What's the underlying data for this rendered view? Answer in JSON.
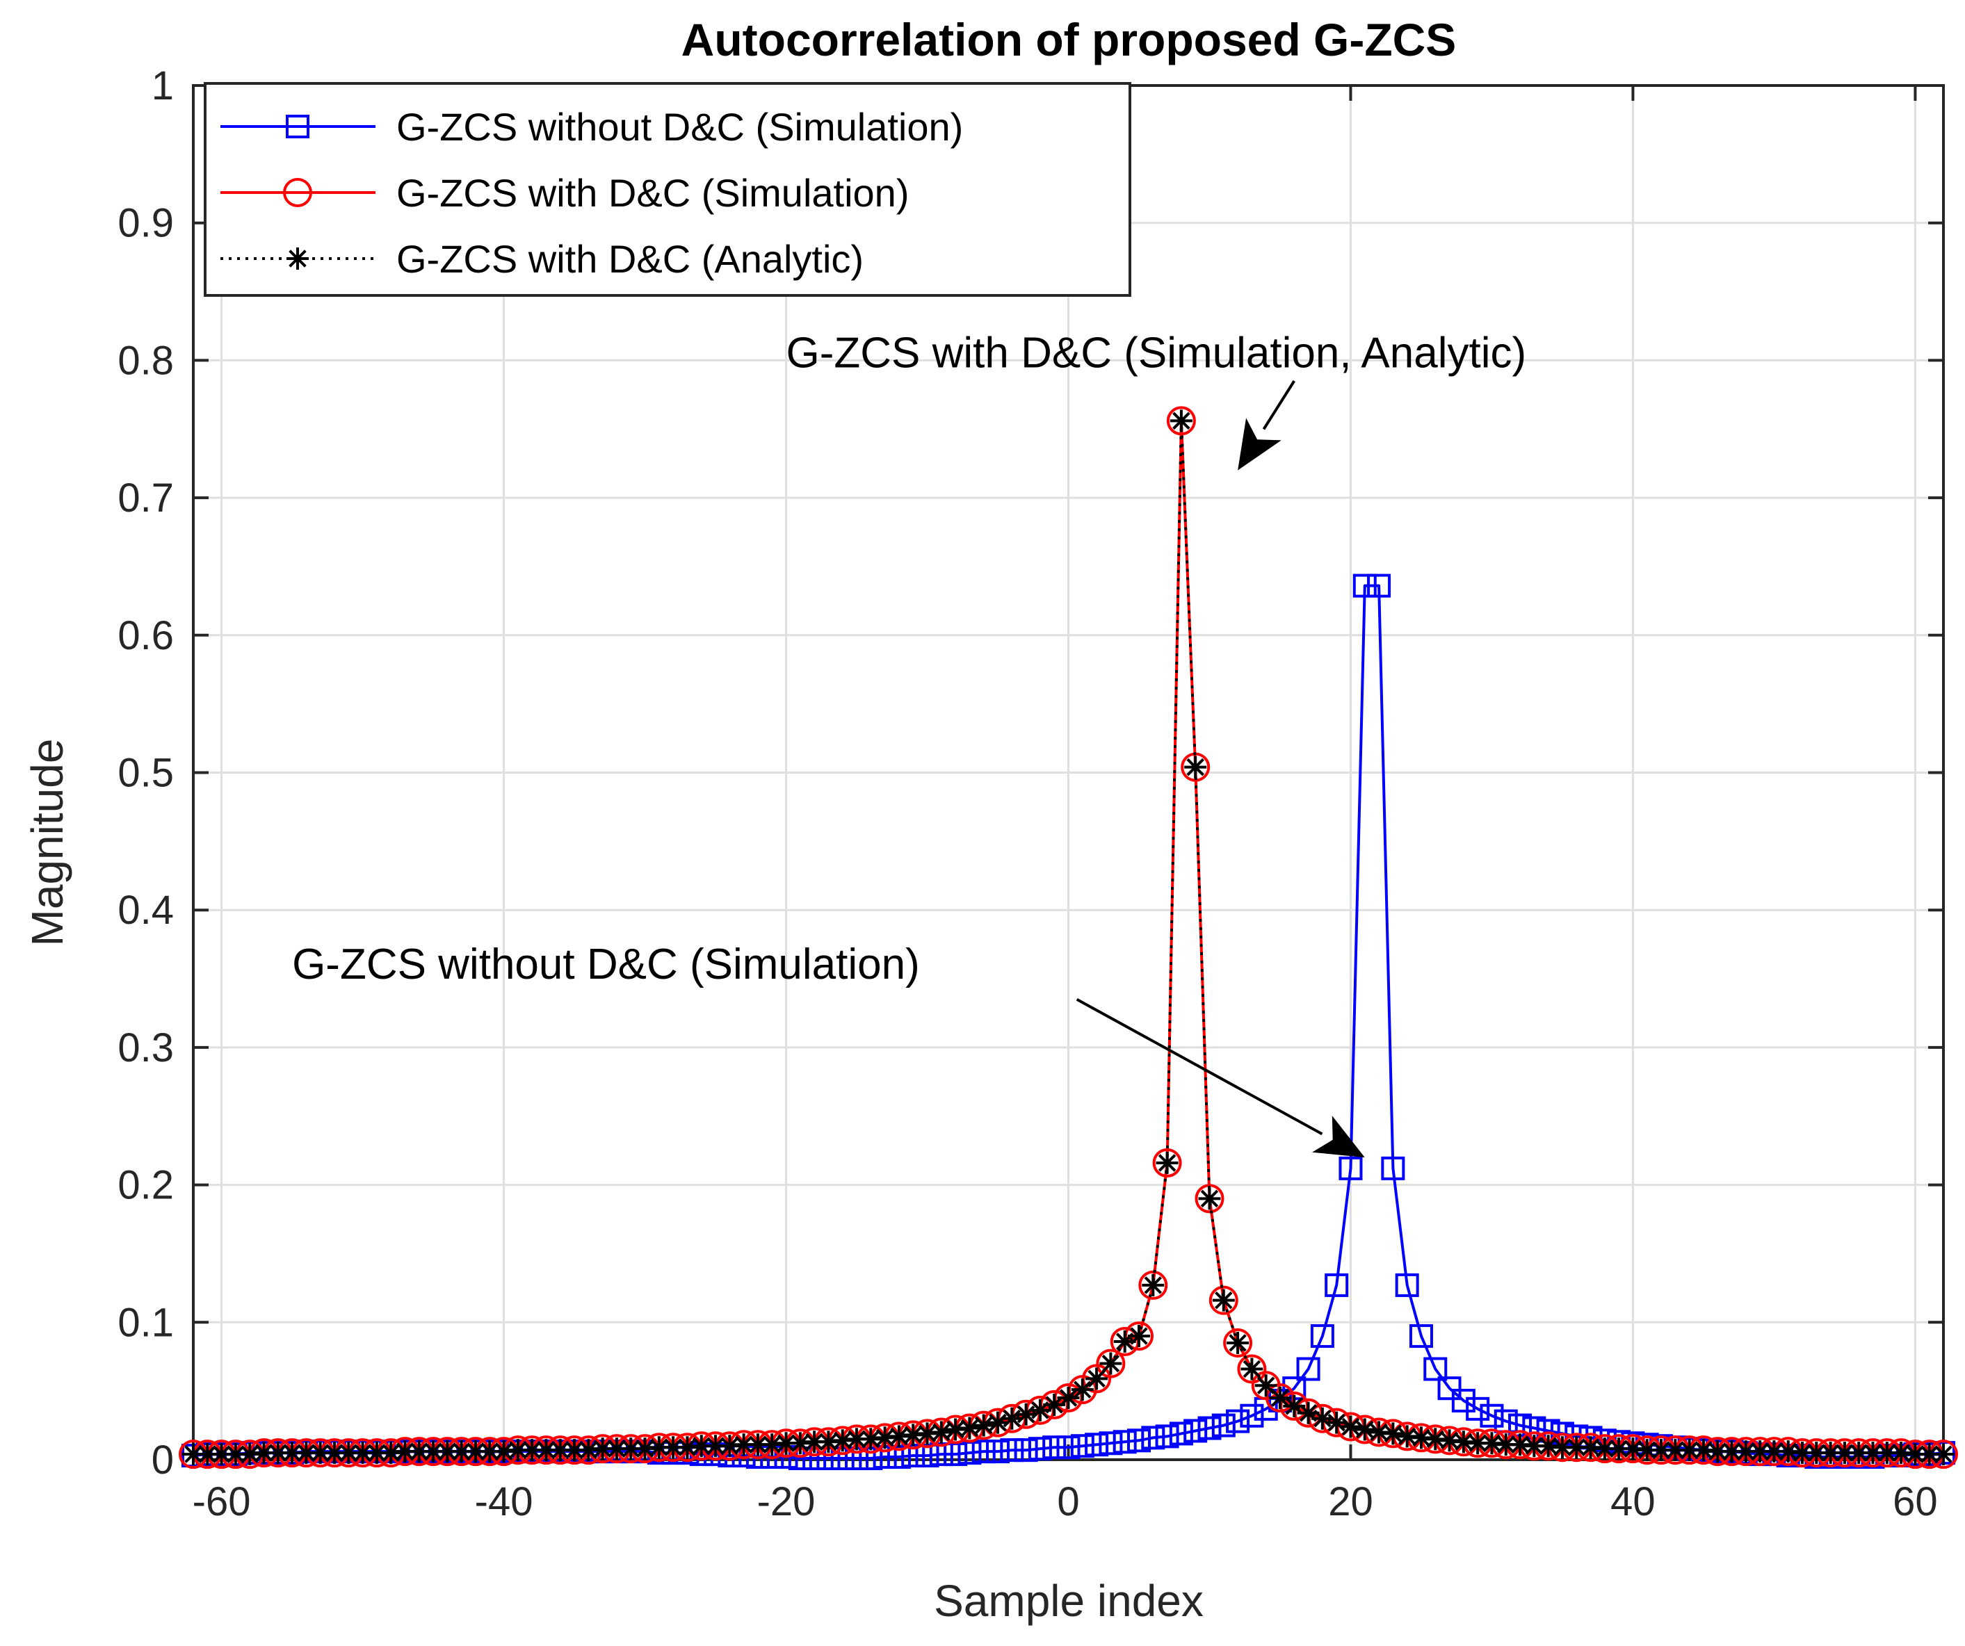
{
  "chart_data": {
    "type": "line",
    "title": "Autocorrelation of proposed G-ZCS",
    "xlabel": "Sample index",
    "ylabel": "Magnitude",
    "xlim": [
      -62,
      62
    ],
    "ylim": [
      0,
      1
    ],
    "grid": true,
    "legend_position": "top-left",
    "xticks": [
      -60,
      -40,
      -20,
      0,
      20,
      40,
      60
    ],
    "xtick_labels": [
      "-60",
      "-40",
      "-20",
      "0",
      "20",
      "40",
      "60"
    ],
    "yticks": [
      0,
      0.1,
      0.2,
      0.3,
      0.4,
      0.5,
      0.6,
      0.7,
      0.8,
      0.9,
      1
    ],
    "ytick_labels": [
      "0",
      "0.1",
      "0.2",
      "0.3",
      "0.4",
      "0.5",
      "0.6",
      "0.7",
      "0.8",
      "0.9",
      "1"
    ],
    "series": [
      {
        "name": "G-ZCS without D&C  (Simulation)",
        "color": "#0000ff",
        "line_style": "solid",
        "marker": "square",
        "x_start": -62,
        "x_step": 1,
        "values": [
          0.003,
          0.004,
          0.004,
          0.004,
          0.005,
          0.005,
          0.005,
          0.005,
          0.006,
          0.006,
          0.006,
          0.006,
          0.006,
          0.006,
          0.006,
          0.006,
          0.006,
          0.006,
          0.006,
          0.006,
          0.006,
          0.006,
          0.006,
          0.006,
          0.006,
          0.006,
          0.006,
          0.006,
          0.006,
          0.006,
          0.006,
          0.006,
          0.006,
          0.005,
          0.005,
          0.005,
          0.004,
          0.004,
          0.003,
          0.003,
          0.002,
          0.002,
          0.002,
          0.001,
          0.001,
          0.001,
          0.001,
          0.001,
          0.001,
          0.002,
          0.002,
          0.003,
          0.003,
          0.004,
          0.004,
          0.005,
          0.006,
          0.006,
          0.007,
          0.007,
          0.008,
          0.009,
          0.009,
          0.01,
          0.011,
          0.012,
          0.013,
          0.014,
          0.016,
          0.017,
          0.019,
          0.021,
          0.023,
          0.025,
          0.028,
          0.032,
          0.037,
          0.043,
          0.052,
          0.066,
          0.09,
          0.127,
          0.212,
          0.636,
          0.636,
          0.212,
          0.127,
          0.09,
          0.066,
          0.052,
          0.043,
          0.037,
          0.032,
          0.028,
          0.025,
          0.023,
          0.021,
          0.019,
          0.017,
          0.016,
          0.014,
          0.013,
          0.012,
          0.011,
          0.01,
          0.009,
          0.008,
          0.007,
          0.006,
          0.006,
          0.005,
          0.004,
          0.004,
          0.003,
          0.003,
          0.002,
          0.002,
          0.002,
          0.002,
          0.002,
          0.003,
          0.003,
          0.004,
          0.004,
          0.005
        ]
      },
      {
        "name": "G-ZCS with D&C (Simulation)",
        "color": "#ff0000",
        "line_style": "solid",
        "marker": "circle",
        "x_start": -62,
        "x_step": 1,
        "values": [
          0.004,
          0.004,
          0.004,
          0.004,
          0.004,
          0.005,
          0.005,
          0.005,
          0.005,
          0.005,
          0.005,
          0.005,
          0.005,
          0.005,
          0.005,
          0.006,
          0.006,
          0.006,
          0.006,
          0.006,
          0.006,
          0.006,
          0.006,
          0.007,
          0.007,
          0.007,
          0.007,
          0.007,
          0.007,
          0.008,
          0.008,
          0.008,
          0.008,
          0.009,
          0.009,
          0.009,
          0.01,
          0.01,
          0.01,
          0.011,
          0.011,
          0.011,
          0.012,
          0.012,
          0.013,
          0.013,
          0.014,
          0.015,
          0.015,
          0.016,
          0.017,
          0.018,
          0.019,
          0.02,
          0.022,
          0.023,
          0.025,
          0.027,
          0.03,
          0.033,
          0.036,
          0.04,
          0.045,
          0.051,
          0.059,
          0.07,
          0.086,
          0.09,
          0.127,
          0.216,
          0.756,
          0.504,
          0.19,
          0.116,
          0.085,
          0.066,
          0.054,
          0.045,
          0.039,
          0.034,
          0.03,
          0.027,
          0.024,
          0.022,
          0.02,
          0.019,
          0.017,
          0.016,
          0.015,
          0.014,
          0.013,
          0.012,
          0.012,
          0.011,
          0.011,
          0.01,
          0.01,
          0.009,
          0.009,
          0.009,
          0.008,
          0.008,
          0.008,
          0.007,
          0.007,
          0.007,
          0.007,
          0.007,
          0.006,
          0.006,
          0.006,
          0.006,
          0.006,
          0.006,
          0.005,
          0.005,
          0.005,
          0.005,
          0.005,
          0.005,
          0.005,
          0.005,
          0.004,
          0.004,
          0.004
        ]
      },
      {
        "name": "G-ZCS with D&C (Analytic)",
        "color": "#000000",
        "line_style": "dotted",
        "marker": "asterisk",
        "x_start": -62,
        "x_step": 1,
        "values": [
          0.004,
          0.004,
          0.004,
          0.004,
          0.004,
          0.005,
          0.005,
          0.005,
          0.005,
          0.005,
          0.005,
          0.005,
          0.005,
          0.005,
          0.005,
          0.006,
          0.006,
          0.006,
          0.006,
          0.006,
          0.006,
          0.006,
          0.006,
          0.007,
          0.007,
          0.007,
          0.007,
          0.007,
          0.007,
          0.008,
          0.008,
          0.008,
          0.008,
          0.009,
          0.009,
          0.009,
          0.01,
          0.01,
          0.01,
          0.011,
          0.011,
          0.011,
          0.012,
          0.012,
          0.013,
          0.013,
          0.014,
          0.015,
          0.015,
          0.016,
          0.017,
          0.018,
          0.019,
          0.02,
          0.022,
          0.023,
          0.025,
          0.027,
          0.03,
          0.033,
          0.036,
          0.04,
          0.045,
          0.051,
          0.059,
          0.07,
          0.086,
          0.09,
          0.127,
          0.216,
          0.756,
          0.504,
          0.19,
          0.116,
          0.085,
          0.066,
          0.054,
          0.045,
          0.039,
          0.034,
          0.03,
          0.027,
          0.024,
          0.022,
          0.02,
          0.019,
          0.017,
          0.016,
          0.015,
          0.014,
          0.013,
          0.012,
          0.012,
          0.011,
          0.011,
          0.01,
          0.01,
          0.009,
          0.009,
          0.009,
          0.008,
          0.008,
          0.008,
          0.007,
          0.007,
          0.007,
          0.007,
          0.007,
          0.006,
          0.006,
          0.006,
          0.006,
          0.006,
          0.006,
          0.005,
          0.005,
          0.005,
          0.005,
          0.005,
          0.005,
          0.005,
          0.005,
          0.004,
          0.004,
          0.004
        ]
      }
    ],
    "annotations": [
      {
        "text": "G-ZCS with D&C  (Simulation, Analytic)",
        "text_x": -20,
        "text_y": 0.795,
        "arrow_from_x": 16,
        "arrow_from_y": 0.785,
        "arrow_to_x": 12,
        "arrow_to_y": 0.72
      },
      {
        "text": "G-ZCS without D&C  (Simulation)",
        "text_x": -55,
        "text_y": 0.35,
        "arrow_from_x": 0.6,
        "arrow_from_y": 0.335,
        "arrow_to_x": 21,
        "arrow_to_y": 0.22
      }
    ]
  }
}
